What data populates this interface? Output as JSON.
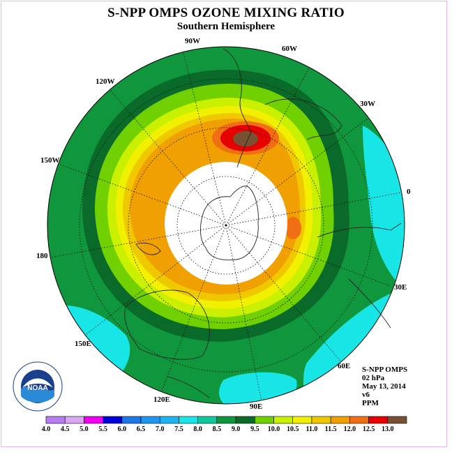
{
  "header": {
    "title": "S-NPP OMPS OZONE MIXING RATIO",
    "subtitle": "Southern Hemisphere"
  },
  "info": {
    "lines": [
      "S-NPP OMPS",
      "02 hPa",
      "May 13, 2014",
      "v6",
      "PPM"
    ]
  },
  "longitude_labels": [
    "90W",
    "60W",
    "120W",
    "30W",
    "150W",
    "0",
    "180",
    "30E",
    "150E",
    "60E",
    "120E",
    "90E"
  ],
  "colorbar": {
    "ticks": [
      "4.0",
      "4.5",
      "5.0",
      "5.5",
      "6.0",
      "6.5",
      "7.0",
      "7.5",
      "8.0",
      "8.5",
      "9.0",
      "9.5",
      "10.0",
      "10.5",
      "11.0",
      "11.5",
      "12.0",
      "12.5",
      "13.0"
    ],
    "colors": [
      "#b87ef0",
      "#dca8f2",
      "#f000f0",
      "#0000d8",
      "#1e78e6",
      "#1e96f0",
      "#1eb4f0",
      "#18e6e6",
      "#10c8a0",
      "#10963c",
      "#0a6a2a",
      "#70d000",
      "#c8f000",
      "#f0f000",
      "#f0c800",
      "#f0a000",
      "#f06e14",
      "#e60000",
      "#785032"
    ]
  },
  "logo": {
    "text": "NOAA"
  }
}
